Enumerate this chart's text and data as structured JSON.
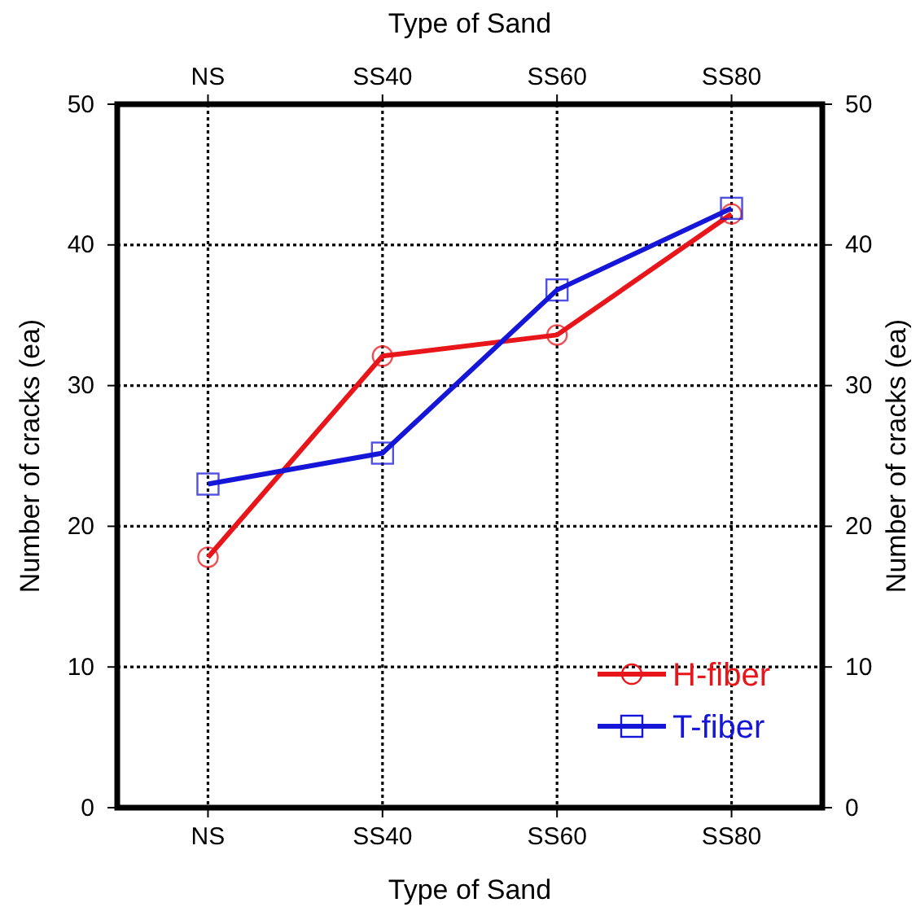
{
  "chart_data": {
    "type": "line",
    "xlabel": "Type of Sand",
    "x2label": "Type of Sand",
    "ylabel": "Number of cracks (ea)",
    "y2label": "Number of cracks (ea)",
    "categories": [
      "NS",
      "SS40",
      "SS60",
      "SS80"
    ],
    "series": [
      {
        "name": "H-fiber",
        "color": "#e8161b",
        "marker": "circle",
        "values": [
          17.8,
          32.1,
          33.6,
          42.2
        ]
      },
      {
        "name": "T-fiber",
        "color": "#1616d8",
        "marker": "square",
        "values": [
          23.0,
          25.2,
          36.8,
          42.6
        ]
      }
    ],
    "ylim": [
      0,
      50
    ],
    "yticks": [
      0,
      10,
      20,
      30,
      40,
      50
    ],
    "y2lim": [
      0,
      50
    ],
    "y2ticks": [
      0,
      10,
      20,
      30,
      40,
      50
    ],
    "grid": true,
    "legend": "bottom right",
    "line_style": "solid"
  }
}
